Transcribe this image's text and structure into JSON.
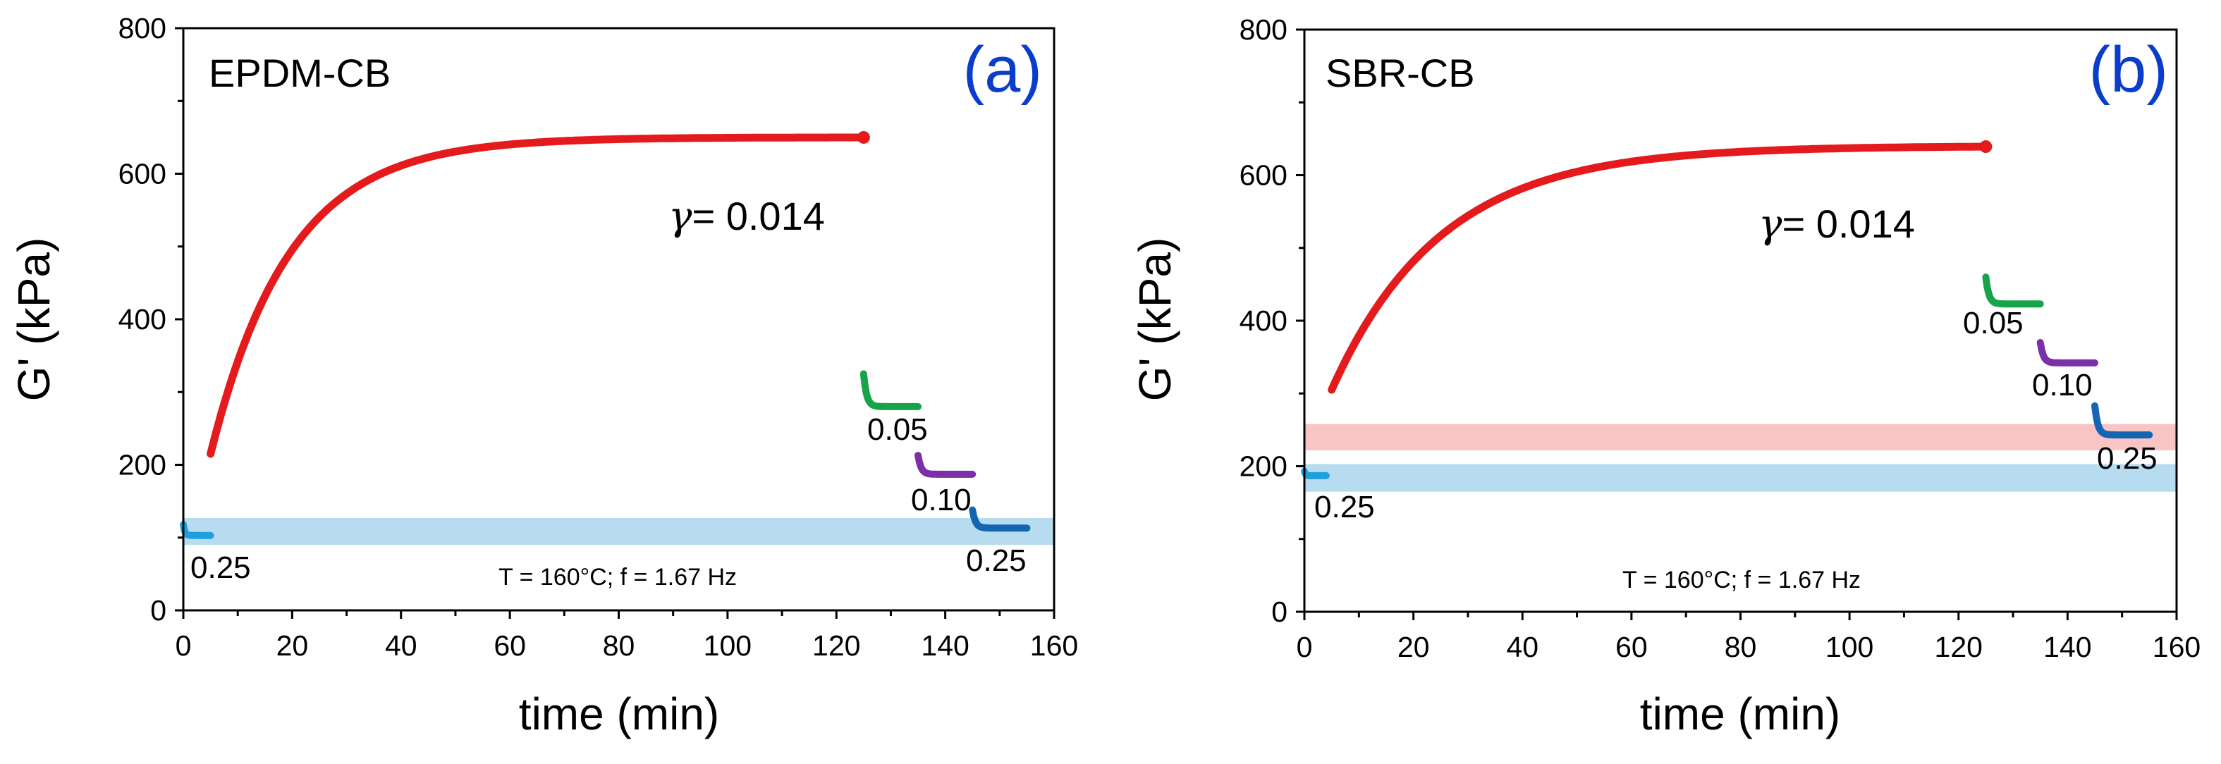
{
  "colors": {
    "main": "#e41a1c",
    "blue_light": "#1ea0dc",
    "green": "#16a34a",
    "purple": "#7b2fa8",
    "blue_dark": "#1466b4",
    "label_blue": "#0b3dcc",
    "band_blue": "#b8dcef",
    "band_red": "#f8c4c4"
  },
  "chart_data": [
    {
      "type": "scatter",
      "panel_label": "(a)",
      "sample": "EPDM-CB",
      "xlabel": "time (min)",
      "ylabel": "G' (kPa)",
      "xlim": [
        0,
        160
      ],
      "ylim": [
        0,
        800
      ],
      "x_ticks": [
        "0",
        "20",
        "40",
        "60",
        "80",
        "100",
        "120",
        "140",
        "160"
      ],
      "y_ticks": [
        "0",
        "200",
        "400",
        "600",
        "800"
      ],
      "condition": "T = 160°C; f = 1.67 Hz",
      "main_series": {
        "strain_label": "= 0.014",
        "gamma_symbol": "γ",
        "t_start": 5,
        "t_end": 125,
        "G0": 215,
        "Ginf": 650,
        "tau": 14.5
      },
      "segments": [
        {
          "name": "0.25",
          "color_key": "blue_light",
          "t_start": 0,
          "t_end": 5,
          "g_start": 118,
          "g_end": 103,
          "label": "0.25"
        },
        {
          "name": "0.05",
          "color_key": "green",
          "t_start": 125,
          "t_end": 135,
          "g_start": 325,
          "g_end": 280,
          "label": "0.05"
        },
        {
          "name": "0.10",
          "color_key": "purple",
          "t_start": 135,
          "t_end": 145,
          "g_start": 213,
          "g_end": 187,
          "label": "0.10"
        },
        {
          "name": "0.25-end",
          "color_key": "blue_dark",
          "t_start": 145,
          "t_end": 155,
          "g_start": 138,
          "g_end": 113,
          "label": "0.25"
        }
      ],
      "bands": [
        {
          "color_key": "band_blue",
          "y_min": 90,
          "y_max": 127
        }
      ]
    },
    {
      "type": "scatter",
      "panel_label": "(b)",
      "sample": "SBR-CB",
      "xlabel": "time (min)",
      "ylabel": "G' (kPa)",
      "xlim": [
        0,
        160
      ],
      "ylim": [
        0,
        800
      ],
      "x_ticks": [
        "0",
        "20",
        "40",
        "60",
        "80",
        "100",
        "120",
        "140",
        "160"
      ],
      "y_ticks": [
        "0",
        "200",
        "400",
        "600",
        "800"
      ],
      "condition": "T = 160°C; f = 1.67 Hz",
      "main_series": {
        "strain_label": "= 0.014",
        "gamma_symbol": "γ",
        "t_start": 5,
        "t_end": 125,
        "G0": 305,
        "Ginf": 640,
        "tau": 20
      },
      "segments": [
        {
          "name": "0.25",
          "color_key": "blue_light",
          "t_start": 0,
          "t_end": 4,
          "g_start": 193,
          "g_end": 187,
          "label": "0.25"
        },
        {
          "name": "0.05",
          "color_key": "green",
          "t_start": 125,
          "t_end": 135,
          "g_start": 460,
          "g_end": 423,
          "label": "0.05"
        },
        {
          "name": "0.10",
          "color_key": "purple",
          "t_start": 135,
          "t_end": 145,
          "g_start": 370,
          "g_end": 342,
          "label": "0.10"
        },
        {
          "name": "0.25-end",
          "color_key": "blue_dark",
          "t_start": 145,
          "t_end": 155,
          "g_start": 283,
          "g_end": 243,
          "label": "0.25"
        }
      ],
      "bands": [
        {
          "color_key": "band_red",
          "y_min": 222,
          "y_max": 258
        },
        {
          "color_key": "band_blue",
          "y_min": 165,
          "y_max": 203
        }
      ]
    }
  ]
}
